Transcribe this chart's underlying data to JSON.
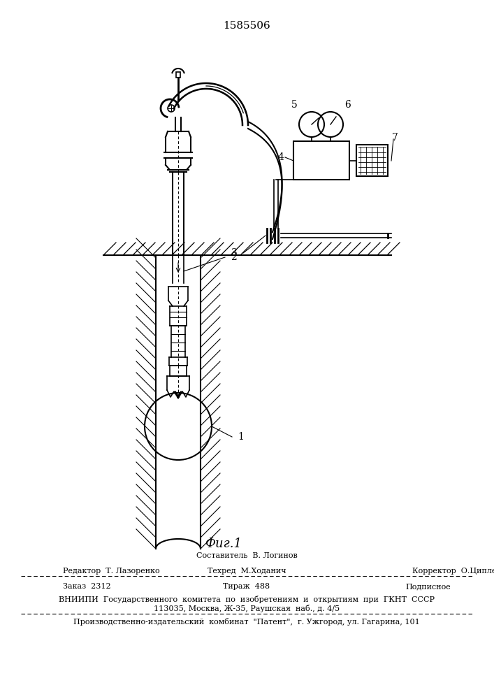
{
  "patent_number": "1585506",
  "fig_label": "Фиг.1",
  "background_color": "#ffffff",
  "line_color": "#000000",
  "composer": "Составитель  В. Логинов",
  "editor": "Редактор  Т. Лазоренко",
  "techred": "Техред  М.Ходанич",
  "corrector": "Корректор  О.Ципле",
  "order": "Заказ  2312",
  "print_run": "Тираж  488",
  "subscription": "Подписное",
  "vniip_line1": "ВНИИПИ  Государственного  комитета  по  изобретениям  и  открытиям  при  ГКНТ  СССР",
  "vniip_line2": "113035, Москва, Ж-35, Раушская  наб., д. 4/5",
  "patent_line": "Производственно-издательский  комбинат  \"Патент\",  г. Ужгород, ул. Гагарина, 101"
}
